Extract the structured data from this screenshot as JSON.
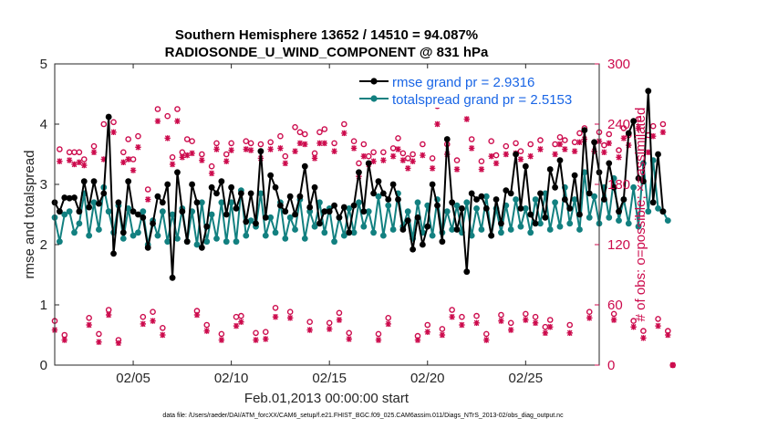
{
  "chart_data": {
    "type": "line",
    "title": "Southern Hemisphere 13652 / 14510 = 94.087%",
    "subtitle": "RADIOSONDE_U_WIND_COMPONENT @ 831 hPa",
    "xlabel": "Feb.01,2013 00:00:00 start",
    "ylabel": "rmse and totalspread",
    "ylabel_right": "# of obs: o=possible; ×=assimilated",
    "xlim": [
      1,
      28.75
    ],
    "ylim": [
      0,
      5
    ],
    "ylim_right": [
      0,
      300
    ],
    "x_ticks": [
      5,
      10,
      15,
      20,
      25
    ],
    "x_tick_labels": [
      "02/05",
      "02/10",
      "02/15",
      "02/20",
      "02/25"
    ],
    "y_ticks": [
      0,
      1,
      2,
      3,
      4,
      5
    ],
    "y_tick_labels": [
      "0",
      "1",
      "2",
      "3",
      "4",
      "5"
    ],
    "y_right_ticks": [
      0,
      60,
      120,
      180,
      240,
      300
    ],
    "y_right_tick_labels": [
      "0",
      "60",
      "120",
      "180",
      "240",
      "300"
    ],
    "x_start": 1.0,
    "x_step": 0.25,
    "legend": [
      {
        "label": "rmse grand pr = 2.9316",
        "color": "#000000"
      },
      {
        "label": "totalspread grand pr = 2.5153",
        "color": "#128080"
      }
    ],
    "series": [
      {
        "name": "rmse",
        "color": "#000000",
        "values": [
          2.7,
          2.55,
          2.78,
          2.77,
          2.78,
          2.55,
          3.05,
          2.62,
          3.05,
          2.68,
          2.85,
          4.12,
          1.85,
          2.7,
          2.2,
          3.05,
          2.55,
          2.5,
          2.45,
          1.95,
          2.35,
          2.8,
          2.7,
          3.0,
          1.45,
          3.2,
          2.55,
          2.05,
          3.0,
          2.7,
          1.95,
          2.3,
          2.95,
          2.85,
          3.05,
          2.5,
          2.95,
          2.6,
          2.85,
          2.38,
          2.85,
          2.35,
          3.55,
          2.45,
          3.15,
          2.95,
          2.65,
          2.55,
          2.8,
          2.5,
          2.8,
          3.3,
          2.62,
          2.95,
          2.35,
          2.55,
          2.55,
          2.65,
          2.45,
          2.62,
          2.2,
          2.65,
          3.2,
          2.55,
          3.35,
          2.85,
          3.05,
          2.85,
          2.75,
          3.0,
          2.75,
          2.25,
          2.4,
          1.92,
          2.45,
          2.0,
          2.3,
          3.0,
          2.65,
          2.05,
          3.75,
          2.7,
          2.25,
          2.6,
          1.55,
          2.85,
          2.75,
          2.8,
          2.6,
          2.15,
          2.75,
          2.35,
          2.9,
          2.85,
          3.5,
          2.6,
          3.3,
          2.5,
          2.35,
          2.85,
          2.45,
          3.25,
          2.95,
          3.4,
          2.75,
          2.6,
          3.15,
          2.5,
          3.9,
          2.85,
          3.7,
          3.2,
          2.75,
          3.35,
          2.95,
          2.55,
          2.75,
          3.85,
          4.05,
          3.1,
          3.05,
          4.55,
          2.7,
          3.5,
          2.55
        ]
      },
      {
        "name": "totalspread",
        "color": "#128080",
        "values": [
          2.45,
          2.05,
          2.5,
          2.55,
          2.2,
          2.35,
          2.85,
          2.15,
          2.7,
          2.25,
          2.95,
          2.55,
          2.2,
          2.65,
          2.1,
          2.6,
          2.15,
          2.2,
          2.55,
          2.0,
          2.4,
          2.15,
          2.55,
          2.05,
          2.5,
          2.1,
          2.6,
          2.05,
          2.55,
          2.0,
          2.7,
          2.05,
          2.5,
          2.1,
          2.7,
          2.05,
          2.7,
          2.05,
          2.9,
          2.15,
          2.4,
          2.3,
          2.85,
          2.15,
          2.45,
          2.2,
          2.7,
          2.1,
          2.45,
          2.25,
          2.75,
          2.1,
          2.55,
          2.3,
          2.7,
          2.2,
          2.6,
          2.05,
          2.45,
          2.15,
          2.6,
          2.2,
          2.7,
          2.3,
          2.55,
          2.2,
          2.8,
          2.15,
          2.65,
          2.25,
          2.85,
          2.3,
          2.55,
          2.1,
          2.7,
          2.2,
          2.65,
          2.15,
          2.75,
          2.2,
          2.55,
          2.25,
          2.65,
          2.2,
          2.7,
          2.15,
          2.6,
          2.25,
          2.8,
          2.15,
          2.6,
          2.2,
          2.65,
          2.25,
          2.75,
          2.3,
          2.6,
          2.2,
          2.75,
          2.35,
          2.85,
          2.25,
          2.7,
          2.3,
          2.95,
          2.35,
          2.75,
          2.25,
          3.2,
          2.45,
          2.8,
          2.35,
          2.95,
          2.45,
          3.1,
          2.4,
          2.75,
          2.35,
          2.95,
          2.3,
          3.35,
          2.55,
          3.4,
          2.6,
          2.55,
          2.4
        ]
      },
      {
        "name": "obs possible",
        "color": "#cc0a4c",
        "marker": "circle",
        "values": [
          44,
          215,
          30,
          212,
          212,
          212,
          205,
          47,
          218,
          31,
          240,
          55,
          242,
          25,
          212,
          225,
          205,
          228,
          48,
          175,
          53,
          255,
          37,
          248,
          207,
          255,
          212,
          225,
          223,
          54,
          210,
          40,
          198,
          221,
          31,
          210,
          221,
          48,
          49,
          223,
          221,
          32,
          220,
          33,
          222,
          57,
          228,
          208,
          53,
          237,
          232,
          230,
          43,
          211,
          232,
          235,
          42,
          221,
          52,
          240,
          32,
          223,
          201,
          220,
          208,
          212,
          31,
          212,
          47,
          216,
          226,
          211,
          206,
          210,
          29,
          220,
          40,
          206,
          258,
          36,
          220,
          55,
          204,
          48,
          262,
          225,
          49,
          203,
          31,
          223,
          209,
          50,
          218,
          42,
          221,
          213,
          51,
          220,
          48,
          224,
          38,
          45,
          220,
          227,
          224,
          40,
          222,
          231,
          236,
          53,
          222,
          232,
          219,
          230,
          51,
          214,
          236,
          229,
          44,
          245,
          34,
          229,
          238,
          46,
          240,
          34,
          0
        ]
      },
      {
        "name": "obs assimilated",
        "color": "#cc0a4c",
        "marker": "asterisk",
        "values": [
          35,
          203,
          25,
          204,
          200,
          202,
          199,
          40,
          212,
          23,
          205,
          50,
          232,
          22,
          202,
          205,
          194,
          217,
          41,
          165,
          44,
          243,
          30,
          226,
          200,
          243,
          207,
          209,
          211,
          50,
          204,
          34,
          191,
          215,
          25,
          203,
          214,
          39,
          43,
          215,
          214,
          25,
          206,
          26,
          215,
          48,
          216,
          201,
          47,
          213,
          221,
          220,
          35,
          206,
          221,
          221,
          36,
          213,
          45,
          231,
          26,
          216,
          188,
          208,
          200,
          203,
          25,
          204,
          41,
          208,
          215,
          204,
          196,
          203,
          25,
          209,
          33,
          196,
          240,
          30,
          210,
          48,
          195,
          40,
          245,
          216,
          42,
          195,
          25,
          208,
          201,
          44,
          210,
          35,
          211,
          205,
          45,
          208,
          42,
          215,
          32,
          38,
          210,
          220,
          215,
          32,
          213,
          222,
          225,
          47,
          213,
          223,
          212,
          221,
          45,
          207,
          226,
          219,
          38,
          236,
          27,
          212,
          228,
          39,
          232,
          30,
          0
        ]
      }
    ],
    "footer": "data file: /Users/raeder/DAI/ATM_forcXX/CAM6_setup/f.e21.FHIST_BGC.f09_025.CAM6assim.011/Diags_NTrS_2013-02/obs_diag_output.nc"
  }
}
